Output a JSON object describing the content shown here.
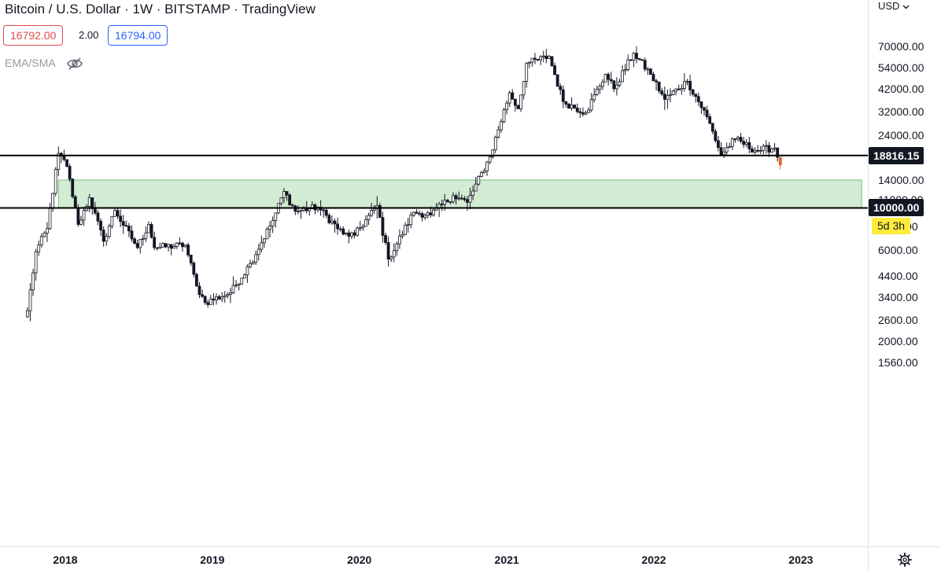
{
  "header": {
    "title": "Bitcoin / U.S. Dollar · 1W · BITSTAMP · TradingView",
    "bid": "16792.00",
    "spread": "2.00",
    "ask": "16794.00",
    "indicator": "EMA/SMA",
    "indicator_visibility_icon": "eye-off-icon"
  },
  "axis": {
    "currency": "USD",
    "currency_icon": "chevron-down-icon",
    "settings_icon": "gear-icon"
  },
  "countdown": "5d 3h",
  "chart_data": {
    "type": "candlestick",
    "title": "Bitcoin / U.S. Dollar · 1W · BITSTAMP · TradingView",
    "timeframe": "1W",
    "y_scale": "log",
    "ylim": [
      1300,
      82000
    ],
    "x_ticks": [
      "2018",
      "2019",
      "2020",
      "2021",
      "2022",
      "2023"
    ],
    "y_ticks": [
      "70000.00",
      "54000.00",
      "42000.00",
      "32000.00",
      "24000.00",
      "18000.00",
      "14000.00",
      "11000.00",
      "8000.00",
      "6000.00",
      "4400.00",
      "3400.00",
      "2600.00",
      "2000.00",
      "1560.00"
    ],
    "grid": false,
    "horizontal_lines": [
      {
        "value": 18816.15,
        "label": "18816.15"
      },
      {
        "value": 10000.0,
        "label": "10000.00"
      }
    ],
    "zone": {
      "low": 10000,
      "high": 14000,
      "from": "2017-12-15",
      "to": "2023-06-01",
      "color": "#d2ebd3"
    },
    "colors": {
      "up": "#ffffff",
      "down": "#131722",
      "outline": "#131722",
      "last_candle_down": "#e8622c",
      "zone": "#d2ebd3",
      "zone_border": "#7bbf7f",
      "countdown_bg": "#ffeb3b"
    },
    "anchors": [
      [
        "2017-09-29",
        2900
      ],
      [
        "2017-10-20",
        5900
      ],
      [
        "2017-11-17",
        7800
      ],
      [
        "2017-12-15",
        19300
      ],
      [
        "2018-01-05",
        16500
      ],
      [
        "2018-02-02",
        8200
      ],
      [
        "2018-03-02",
        11300
      ],
      [
        "2018-04-06",
        6700
      ],
      [
        "2018-05-04",
        9700
      ],
      [
        "2018-06-29",
        6200
      ],
      [
        "2018-07-27",
        8200
      ],
      [
        "2018-08-10",
        6200
      ],
      [
        "2018-10-26",
        6400
      ],
      [
        "2018-11-23",
        3900
      ],
      [
        "2018-12-14",
        3200
      ],
      [
        "2019-02-15",
        3600
      ],
      [
        "2019-04-05",
        5100
      ],
      [
        "2019-05-31",
        8600
      ],
      [
        "2019-06-28",
        12200
      ],
      [
        "2019-07-26",
        9600
      ],
      [
        "2019-09-20",
        10100
      ],
      [
        "2019-11-22",
        7300
      ],
      [
        "2019-12-20",
        7200
      ],
      [
        "2020-02-14",
        10300
      ],
      [
        "2020-03-13",
        5400
      ],
      [
        "2020-05-15",
        9500
      ],
      [
        "2020-06-26",
        9200
      ],
      [
        "2020-08-21",
        11600
      ],
      [
        "2020-09-25",
        10700
      ],
      [
        "2020-11-20",
        18500
      ],
      [
        "2021-01-08",
        40000
      ],
      [
        "2021-01-29",
        33000
      ],
      [
        "2021-02-19",
        57000
      ],
      [
        "2021-04-16",
        62000
      ],
      [
        "2021-05-21",
        36000
      ],
      [
        "2021-07-16",
        31500
      ],
      [
        "2021-09-03",
        50000
      ],
      [
        "2021-09-24",
        42000
      ],
      [
        "2021-11-12",
        64500
      ],
      [
        "2021-12-24",
        50000
      ],
      [
        "2022-01-28",
        37000
      ],
      [
        "2022-03-25",
        46000
      ],
      [
        "2022-05-13",
        30000
      ],
      [
        "2022-06-17",
        19000
      ],
      [
        "2022-07-22",
        23000
      ],
      [
        "2022-09-09",
        20000
      ],
      [
        "2022-10-28",
        20600
      ],
      [
        "2022-11-11",
        16800
      ]
    ],
    "last_close": 16792.0,
    "price_tags": [
      "18816.15",
      "10000.00"
    ]
  }
}
